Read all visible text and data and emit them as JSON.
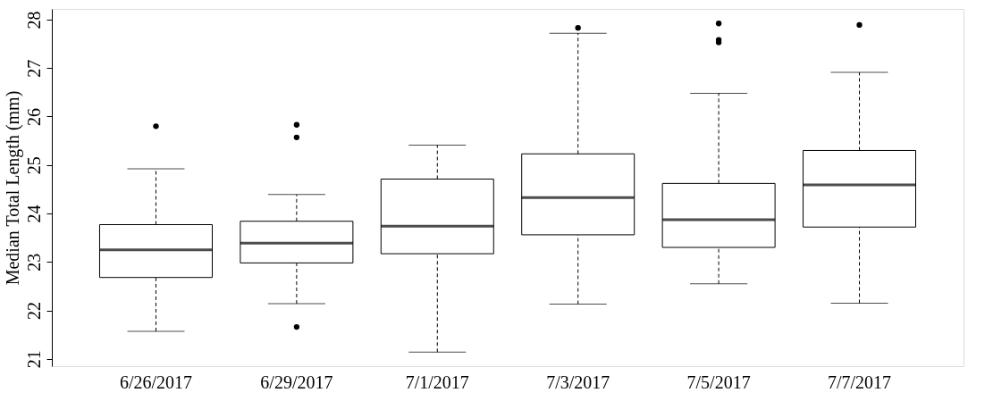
{
  "chart_data": {
    "type": "box",
    "ylabel": "Median Total Length (mm)",
    "categories": [
      "6/26/2017",
      "6/29/2017",
      "7/1/2017",
      "7/3/2017",
      "7/5/2017",
      "7/7/2017"
    ],
    "boxes": [
      {
        "low": 21.57,
        "q1": 22.68,
        "median": 23.25,
        "q3": 23.77,
        "high": 24.92,
        "outliers": [
          25.8
        ]
      },
      {
        "low": 22.14,
        "q1": 22.98,
        "median": 23.39,
        "q3": 23.84,
        "high": 24.39,
        "outliers": [
          25.83,
          25.57,
          21.66
        ]
      },
      {
        "low": 21.14,
        "q1": 23.17,
        "median": 23.74,
        "q3": 24.71,
        "high": 25.41
      },
      {
        "low": 22.13,
        "q1": 23.56,
        "median": 24.33,
        "q3": 25.23,
        "high": 27.72,
        "outliers": [
          27.83
        ]
      },
      {
        "low": 22.55,
        "q1": 23.3,
        "median": 23.87,
        "q3": 24.62,
        "high": 26.48,
        "outliers": [
          27.92,
          27.58,
          27.53
        ]
      },
      {
        "low": 22.15,
        "q1": 23.72,
        "median": 24.59,
        "q3": 25.3,
        "high": 26.91,
        "outliers": [
          27.89
        ]
      }
    ],
    "ylim": [
      20.85,
      28.22
    ],
    "yticks": [
      21,
      22,
      23,
      24,
      25,
      26,
      27,
      28
    ],
    "grid": false
  }
}
